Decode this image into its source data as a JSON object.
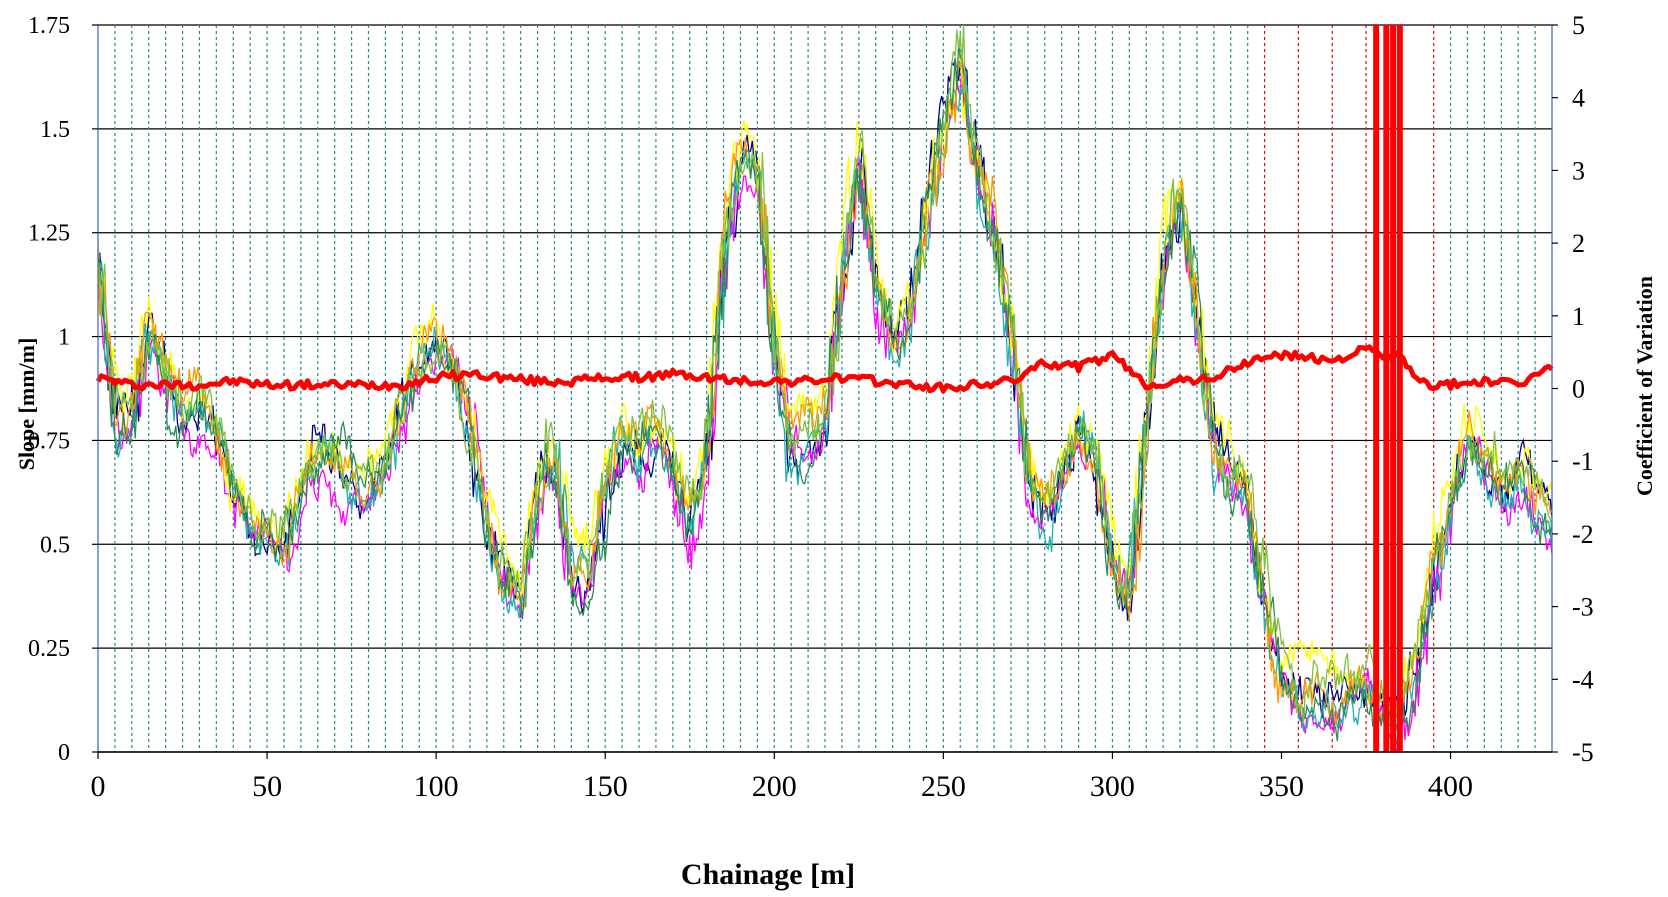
{
  "chart_data": {
    "type": "line",
    "xlabel": "Chainage [m]",
    "ylabel": "Slope [mm/m]",
    "y2label": "Coefficient of Variation",
    "xlim": [
      0,
      430
    ],
    "ylim": [
      0,
      1.75
    ],
    "y2lim": [
      -5,
      5
    ],
    "x_ticks": [
      0,
      50,
      100,
      150,
      200,
      250,
      300,
      350,
      400
    ],
    "y_ticks": [
      "0",
      "0.25",
      "0.5",
      "0.75",
      "1",
      "1.25",
      "1.5",
      "1.75"
    ],
    "y2_ticks": [
      "-5",
      "-4",
      "-3",
      "-2",
      "-1",
      "0",
      "1",
      "2",
      "3",
      "4",
      "5"
    ],
    "grid": true,
    "vertical_markers": {
      "teal_dashed": [
        5,
        10,
        15,
        20,
        25,
        30,
        35,
        40,
        45,
        50,
        55,
        60,
        65,
        70,
        75,
        80,
        85,
        90,
        95,
        100,
        105,
        110,
        115,
        120,
        125,
        130,
        135,
        140,
        145,
        150,
        155,
        160,
        165,
        170,
        175,
        180,
        185,
        190,
        195,
        200,
        205,
        210,
        215,
        220,
        225,
        230,
        235,
        240,
        245,
        250,
        255,
        260,
        265,
        270,
        275,
        280,
        285,
        290,
        295,
        300,
        305,
        310,
        315,
        320,
        325,
        330,
        335,
        340,
        400,
        405,
        410,
        415,
        420,
        425
      ],
      "red_dashed": [
        345,
        355,
        365,
        375,
        385,
        395
      ],
      "teal_color": "#2a8a8a",
      "red_color": "#d01010"
    },
    "slope_profile": {
      "x": [
        0,
        5,
        10,
        15,
        20,
        25,
        30,
        35,
        40,
        45,
        50,
        55,
        60,
        65,
        70,
        75,
        80,
        85,
        90,
        95,
        100,
        105,
        110,
        115,
        120,
        125,
        130,
        135,
        140,
        145,
        150,
        155,
        160,
        165,
        170,
        175,
        180,
        185,
        190,
        195,
        200,
        205,
        210,
        215,
        220,
        225,
        230,
        235,
        240,
        245,
        250,
        255,
        260,
        265,
        270,
        275,
        280,
        285,
        290,
        295,
        300,
        305,
        310,
        315,
        320,
        325,
        330,
        335,
        340,
        345,
        350,
        355,
        360,
        365,
        370,
        375,
        380,
        385,
        390,
        395,
        400,
        405,
        410,
        415,
        420,
        425,
        430
      ],
      "y": [
        1.2,
        0.82,
        0.8,
        1.02,
        0.92,
        0.8,
        0.85,
        0.78,
        0.62,
        0.55,
        0.55,
        0.5,
        0.62,
        0.7,
        0.7,
        0.68,
        0.65,
        0.7,
        0.85,
        0.95,
        0.98,
        0.92,
        0.78,
        0.55,
        0.42,
        0.35,
        0.6,
        0.72,
        0.42,
        0.4,
        0.62,
        0.75,
        0.72,
        0.78,
        0.7,
        0.55,
        0.7,
        1.2,
        1.45,
        1.4,
        0.95,
        0.72,
        0.75,
        0.8,
        1.15,
        1.45,
        1.15,
        1.0,
        1.05,
        1.3,
        1.5,
        1.68,
        1.4,
        1.25,
        1.0,
        0.65,
        0.55,
        0.65,
        0.78,
        0.7,
        0.45,
        0.35,
        0.8,
        1.2,
        1.35,
        1.05,
        0.75,
        0.65,
        0.6,
        0.35,
        0.18,
        0.13,
        0.13,
        0.12,
        0.14,
        0.15,
        0.08,
        0.08,
        0.2,
        0.42,
        0.6,
        0.75,
        0.7,
        0.62,
        0.65,
        0.6,
        0.55
      ]
    },
    "series": [
      {
        "color": "#000080",
        "offset": 0.0,
        "seed": 11
      },
      {
        "color": "#ff00ff",
        "offset": -0.03,
        "seed": 23
      },
      {
        "color": "#ffff00",
        "offset": 0.03,
        "seed": 37
      },
      {
        "color": "#20b0b0",
        "offset": -0.02,
        "seed": 41
      },
      {
        "color": "#ff9900",
        "offset": 0.01,
        "seed": 53
      },
      {
        "color": "#2e8b57",
        "offset": -0.01,
        "seed": 67
      },
      {
        "color": "#80c040",
        "offset": 0.02,
        "seed": 79
      }
    ],
    "cov_series": {
      "color": "#ff0000",
      "x": [
        0,
        10,
        20,
        30,
        40,
        50,
        60,
        70,
        80,
        90,
        100,
        110,
        120,
        130,
        140,
        150,
        160,
        170,
        180,
        190,
        200,
        210,
        220,
        230,
        240,
        250,
        260,
        270,
        280,
        290,
        300,
        305,
        310,
        320,
        330,
        340,
        345,
        350,
        355,
        360,
        365,
        370,
        375,
        380,
        385,
        390,
        395,
        400,
        410,
        420,
        430
      ],
      "y": [
        0.15,
        0.05,
        0.05,
        0.05,
        0.1,
        0.05,
        0.05,
        0.05,
        0.05,
        0.05,
        0.15,
        0.2,
        0.15,
        0.1,
        0.1,
        0.15,
        0.15,
        0.2,
        0.15,
        0.1,
        0.1,
        0.1,
        0.15,
        0.1,
        0.05,
        0.0,
        0.05,
        0.1,
        0.35,
        0.3,
        0.45,
        0.25,
        0.05,
        0.1,
        0.15,
        0.35,
        0.45,
        0.45,
        0.45,
        0.4,
        0.4,
        0.45,
        0.55,
        0.45,
        0.45,
        0.1,
        0.05,
        0.05,
        0.1,
        0.05,
        0.3
      ],
      "spikes": [
        378,
        381,
        383,
        385
      ],
      "spike_top": 5,
      "spike_bottom": -5
    }
  }
}
